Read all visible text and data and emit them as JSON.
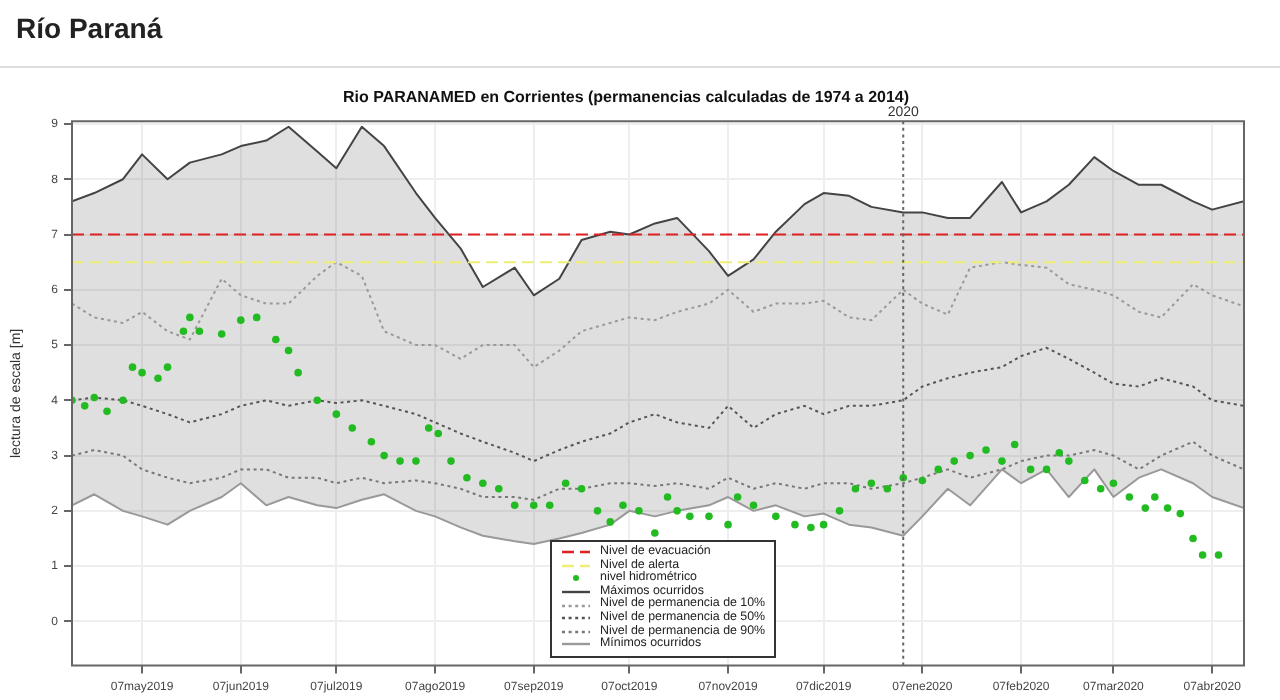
{
  "chart_data": {
    "type": "line",
    "title": "Río Paraná",
    "subtitle": "Rio PARANAMED en Corrientes (permanencias calculadas de 1974 a 2014)",
    "ylabel": "lectura de escala [m]",
    "x": [
      "2019-04-15",
      "2019-04-22",
      "2019-05-01",
      "2019-05-07",
      "2019-05-15",
      "2019-05-22",
      "2019-06-01",
      "2019-06-07",
      "2019-06-15",
      "2019-06-22",
      "2019-07-01",
      "2019-07-07",
      "2019-07-15",
      "2019-07-22",
      "2019-08-01",
      "2019-08-07",
      "2019-08-15",
      "2019-08-22",
      "2019-09-01",
      "2019-09-07",
      "2019-09-15",
      "2019-09-22",
      "2019-10-01",
      "2019-10-07",
      "2019-10-15",
      "2019-10-22",
      "2019-11-01",
      "2019-11-07",
      "2019-11-15",
      "2019-11-22",
      "2019-12-01",
      "2019-12-07",
      "2019-12-15",
      "2019-12-22",
      "2020-01-01",
      "2020-01-07",
      "2020-01-15",
      "2020-01-22",
      "2020-02-01",
      "2020-02-07",
      "2020-02-15",
      "2020-02-22",
      "2020-03-01",
      "2020-03-07",
      "2020-03-15",
      "2020-03-22",
      "2020-04-01",
      "2020-04-07",
      "2020-04-17"
    ],
    "series": [
      {
        "name": "Nivel de evacuación",
        "color": "#dd2222",
        "line_style": "dashed",
        "x": [
          "2019-04-15",
          "2020-04-17"
        ],
        "values": [
          7,
          7
        ]
      },
      {
        "name": "Nivel de alerta",
        "color": "#eeee77",
        "line_style": "dashed",
        "x": [
          "2019-04-15",
          "2020-04-17"
        ],
        "values": [
          6.5,
          6.5
        ]
      },
      {
        "name": "nivel hidrométrico",
        "type": "scatter",
        "marker": "circle",
        "color": "#22bb22",
        "x": [
          "2019-04-15",
          "2019-04-19",
          "2019-04-22",
          "2019-04-26",
          "2019-05-01",
          "2019-05-04",
          "2019-05-07",
          "2019-05-12",
          "2019-05-15",
          "2019-05-20",
          "2019-05-22",
          "2019-05-25",
          "2019-06-01",
          "2019-06-07",
          "2019-06-12",
          "2019-06-18",
          "2019-06-22",
          "2019-06-25",
          "2019-07-01",
          "2019-07-07",
          "2019-07-12",
          "2019-07-18",
          "2019-07-22",
          "2019-07-27",
          "2019-08-01",
          "2019-08-05",
          "2019-08-08",
          "2019-08-12",
          "2019-08-17",
          "2019-08-22",
          "2019-08-27",
          "2019-09-01",
          "2019-09-07",
          "2019-09-12",
          "2019-09-17",
          "2019-09-22",
          "2019-09-27",
          "2019-10-01",
          "2019-10-05",
          "2019-10-10",
          "2019-10-15",
          "2019-10-19",
          "2019-10-22",
          "2019-10-26",
          "2019-11-01",
          "2019-11-07",
          "2019-11-10",
          "2019-11-15",
          "2019-11-22",
          "2019-11-28",
          "2019-12-03",
          "2019-12-07",
          "2019-12-12",
          "2019-12-17",
          "2019-12-22",
          "2019-12-27",
          "2020-01-01",
          "2020-01-07",
          "2020-01-12",
          "2020-01-17",
          "2020-01-22",
          "2020-01-27",
          "2020-02-01",
          "2020-02-05",
          "2020-02-10",
          "2020-02-15",
          "2020-02-19",
          "2020-02-22",
          "2020-02-27",
          "2020-03-03",
          "2020-03-07",
          "2020-03-12",
          "2020-03-17",
          "2020-03-20",
          "2020-03-24",
          "2020-03-28",
          "2020-04-01",
          "2020-04-04",
          "2020-04-09"
        ],
        "values": [
          4.0,
          3.9,
          4.05,
          3.8,
          4.0,
          4.6,
          4.5,
          4.4,
          4.6,
          5.25,
          5.5,
          5.25,
          5.2,
          5.45,
          5.5,
          5.1,
          4.9,
          4.5,
          4.0,
          3.75,
          3.5,
          3.25,
          3.0,
          2.9,
          2.9,
          3.5,
          3.4,
          2.9,
          2.6,
          2.5,
          2.4,
          2.1,
          2.1,
          2.1,
          2.5,
          2.4,
          2.0,
          1.8,
          2.1,
          2.0,
          1.6,
          2.25,
          2.0,
          1.9,
          1.9,
          1.75,
          2.25,
          2.1,
          1.9,
          1.75,
          1.7,
          1.75,
          2.0,
          2.4,
          2.5,
          2.4,
          2.6,
          2.55,
          2.75,
          2.9,
          3.0,
          3.1,
          2.9,
          3.2,
          2.75,
          2.75,
          3.05,
          2.9,
          2.55,
          2.4,
          2.5,
          2.25,
          2.05,
          2.25,
          2.05,
          1.95,
          1.5,
          1.2,
          1.2
        ]
      },
      {
        "name": "Máximos ocurridos",
        "type": "area",
        "color": "#444444",
        "line_style": "solid",
        "values": [
          7.6,
          7.75,
          8.0,
          8.45,
          8.0,
          8.3,
          8.45,
          8.6,
          8.7,
          8.95,
          8.5,
          8.2,
          8.95,
          8.6,
          7.75,
          7.3,
          6.75,
          6.05,
          6.4,
          5.9,
          6.2,
          6.9,
          7.05,
          7.0,
          7.2,
          7.3,
          6.7,
          6.25,
          6.55,
          7.05,
          7.55,
          7.75,
          7.7,
          7.5,
          7.4,
          7.4,
          7.3,
          7.3,
          7.95,
          7.4,
          7.6,
          7.9,
          8.4,
          8.15,
          7.9,
          7.9,
          7.6,
          7.45,
          7.6
        ]
      },
      {
        "name": "Nivel de permanencia de 10%",
        "color": "#999999",
        "line_style": "dotted",
        "values": [
          5.75,
          5.5,
          5.4,
          5.6,
          5.25,
          5.1,
          6.2,
          5.9,
          5.75,
          5.75,
          6.25,
          6.5,
          6.25,
          5.25,
          5.0,
          5.0,
          4.75,
          5.0,
          5.0,
          4.6,
          4.9,
          5.25,
          5.4,
          5.5,
          5.45,
          5.6,
          5.75,
          6.0,
          5.6,
          5.75,
          5.75,
          5.8,
          5.5,
          5.45,
          6.0,
          5.75,
          5.55,
          6.4,
          6.5,
          6.45,
          6.4,
          6.1,
          6.0,
          5.9,
          5.6,
          5.5,
          6.1,
          5.9,
          5.7
        ]
      },
      {
        "name": "Nivel de permanencia de 50%",
        "color": "#555555",
        "line_style": "dotted",
        "values": [
          4.0,
          4.05,
          4.0,
          3.9,
          3.75,
          3.6,
          3.75,
          3.9,
          4.0,
          3.9,
          4.0,
          3.95,
          4.0,
          3.9,
          3.75,
          3.6,
          3.4,
          3.25,
          3.05,
          2.9,
          3.1,
          3.25,
          3.4,
          3.6,
          3.75,
          3.6,
          3.5,
          3.9,
          3.5,
          3.75,
          3.9,
          3.75,
          3.9,
          3.9,
          4.0,
          4.25,
          4.4,
          4.5,
          4.6,
          4.8,
          4.95,
          4.75,
          4.5,
          4.3,
          4.25,
          4.4,
          4.25,
          4.0,
          3.9
        ]
      },
      {
        "name": "Nivel de permanencia de 90%",
        "color": "#777777",
        "line_style": "dotted",
        "values": [
          3.0,
          3.1,
          3.0,
          2.75,
          2.6,
          2.5,
          2.6,
          2.75,
          2.75,
          2.6,
          2.6,
          2.5,
          2.6,
          2.5,
          2.55,
          2.5,
          2.4,
          2.25,
          2.25,
          2.2,
          2.4,
          2.4,
          2.5,
          2.5,
          2.45,
          2.5,
          2.4,
          2.6,
          2.4,
          2.5,
          2.4,
          2.5,
          2.5,
          2.4,
          2.5,
          2.6,
          2.75,
          2.6,
          2.75,
          2.9,
          3.0,
          3.0,
          3.1,
          3.0,
          2.75,
          3.0,
          3.25,
          3.0,
          2.75
        ]
      },
      {
        "name": "Mínimos ocurridos",
        "color": "#999999",
        "line_style": "solid",
        "values": [
          2.1,
          2.3,
          2.0,
          1.9,
          1.75,
          2.0,
          2.25,
          2.5,
          2.1,
          2.25,
          2.1,
          2.05,
          2.2,
          2.3,
          2.0,
          1.9,
          1.7,
          1.55,
          1.45,
          1.4,
          1.5,
          1.6,
          1.75,
          2.0,
          1.9,
          2.0,
          2.1,
          2.25,
          2.0,
          2.1,
          1.9,
          1.95,
          1.75,
          1.7,
          1.55,
          1.9,
          2.4,
          2.1,
          2.75,
          2.5,
          2.75,
          2.25,
          2.75,
          2.25,
          2.6,
          2.75,
          2.5,
          2.25,
          2.05
        ]
      }
    ],
    "xlim": [
      "2019-04-15",
      "2020-04-17"
    ],
    "xticks": [
      {
        "value": "2019-05-07",
        "label": "07may2019"
      },
      {
        "value": "2019-06-07",
        "label": "07jun2019"
      },
      {
        "value": "2019-07-07",
        "label": "07jul2019"
      },
      {
        "value": "2019-08-07",
        "label": "07ago2019"
      },
      {
        "value": "2019-09-07",
        "label": "07sep2019"
      },
      {
        "value": "2019-10-07",
        "label": "07oct2019"
      },
      {
        "value": "2019-11-07",
        "label": "07nov2019"
      },
      {
        "value": "2019-12-07",
        "label": "07dic2019"
      },
      {
        "value": "2020-01-07",
        "label": "07ene2020"
      },
      {
        "value": "2020-02-07",
        "label": "07feb2020"
      },
      {
        "value": "2020-03-07",
        "label": "07mar2020"
      },
      {
        "value": "2020-04-07",
        "label": "07abr2020"
      }
    ],
    "ylim": [
      -0.8,
      9.05
    ],
    "yticks": [
      0,
      1,
      2,
      3,
      4,
      5,
      6,
      7,
      8,
      9
    ],
    "ref_lines": [
      {
        "axis": "x",
        "value": "2020-01-01",
        "label": "2020",
        "color": "#666666",
        "line_style": "dotted"
      }
    ],
    "grid": true,
    "legend": "bottom"
  }
}
